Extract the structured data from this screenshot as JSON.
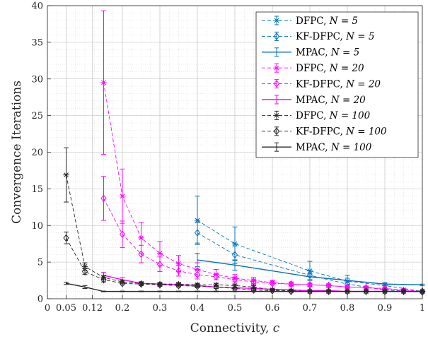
{
  "chart_data": {
    "type": "line",
    "title": "",
    "xlabel": "Connectivity, ",
    "xlabel_var": "c",
    "ylabel": "Convergence Iterations",
    "xlim": [
      0,
      1
    ],
    "ylim": [
      0,
      40
    ],
    "x_ticks": [
      0,
      0.05,
      0.12,
      0.2,
      0.3,
      0.4,
      0.5,
      0.6,
      0.7,
      0.8,
      0.9,
      1
    ],
    "x_tick_labels": [
      "0",
      "0.05",
      "0.12",
      "0.2",
      "0.3",
      "0.4",
      "0.5",
      "0.6",
      "0.7",
      "0.8",
      "0.9",
      "1"
    ],
    "y_ticks": [
      0,
      5,
      10,
      15,
      20,
      25,
      30,
      35,
      40
    ],
    "y_tick_labels": [
      "0",
      "5",
      "10",
      "15",
      "20",
      "25",
      "30",
      "35",
      "40"
    ],
    "grid": true,
    "legend_position": "top-right",
    "colors": {
      "n5": "#0072BD",
      "n20": "#FF00FF",
      "n100": "#262626"
    },
    "series": [
      {
        "name": "DFPC, ",
        "n_label": "N = 5",
        "group": "n5",
        "style": "dashed",
        "marker": "star",
        "x": [
          0.4,
          0.5,
          0.7,
          0.8,
          0.9,
          1.0
        ],
        "y": [
          10.7,
          7.5,
          3.8,
          2.4,
          1.8,
          1.0
        ],
        "err": [
          3.3,
          2.3,
          1.3,
          0.8,
          0.3,
          0.1
        ]
      },
      {
        "name": "KF-DFPC, ",
        "n_label": "N = 5",
        "group": "n5",
        "style": "dashed",
        "marker": "diamond",
        "x": [
          0.4,
          0.5,
          0.7,
          0.8,
          0.9,
          1.0
        ],
        "y": [
          9.0,
          6.0,
          3.2,
          2.0,
          1.2,
          0.9
        ],
        "err": [
          1.4,
          1.2,
          0.6,
          0.4,
          0.2,
          0.1
        ]
      },
      {
        "name": "MPAC, ",
        "n_label": "N = 5",
        "group": "n5",
        "style": "solid",
        "marker": "none",
        "x": [
          0.4,
          0.5,
          0.7,
          0.8,
          0.9,
          1.0
        ],
        "y": [
          5.3,
          4.6,
          3.0,
          2.5,
          2.0,
          1.9
        ],
        "err": [
          0.9,
          0.7,
          0.4,
          0.3,
          0.2,
          0.1
        ]
      },
      {
        "name": "DFPC, ",
        "n_label": "N = 20",
        "group": "n20",
        "style": "dashed",
        "marker": "star",
        "x": [
          0.15,
          0.2,
          0.25,
          0.3,
          0.35,
          0.4,
          0.45,
          0.5,
          0.55,
          0.6,
          0.65,
          0.7,
          0.75,
          0.8,
          0.85,
          0.9,
          0.95,
          1.0
        ],
        "y": [
          29.5,
          14.0,
          8.3,
          6.2,
          4.8,
          4.0,
          3.3,
          2.8,
          2.5,
          2.2,
          2.0,
          1.9,
          1.8,
          1.6,
          1.5,
          1.4,
          1.2,
          1.0
        ],
        "err": [
          9.8,
          3.7,
          2.1,
          1.6,
          1.1,
          0.9,
          0.7,
          0.5,
          0.4,
          0.3,
          0.3,
          0.2,
          0.2,
          0.2,
          0.2,
          0.1,
          0.1,
          0.1
        ]
      },
      {
        "name": "KF-DFPC, ",
        "n_label": "N = 20",
        "group": "n20",
        "style": "dashed",
        "marker": "diamond",
        "x": [
          0.15,
          0.2,
          0.25,
          0.3,
          0.35,
          0.4,
          0.45,
          0.5,
          0.55,
          0.6,
          0.65,
          0.7,
          0.75,
          0.8,
          0.85,
          0.9,
          0.95,
          1.0
        ],
        "y": [
          13.7,
          8.8,
          6.1,
          4.7,
          3.8,
          3.3,
          3.0,
          2.6,
          2.3,
          2.1,
          2.0,
          1.9,
          1.8,
          1.6,
          1.5,
          1.3,
          1.1,
          1.0
        ],
        "err": [
          3.0,
          1.8,
          1.2,
          1.0,
          0.7,
          0.6,
          0.4,
          0.3,
          0.3,
          0.2,
          0.2,
          0.2,
          0.2,
          0.1,
          0.1,
          0.1,
          0.1,
          0.1
        ]
      },
      {
        "name": "MPAC, ",
        "n_label": "N = 20",
        "group": "n20",
        "style": "solid",
        "marker": "none",
        "x": [
          0.15,
          0.2,
          0.25,
          0.3,
          0.35,
          0.4,
          0.45,
          0.5,
          0.55,
          0.6,
          0.65,
          0.7,
          0.75,
          0.8,
          0.85,
          0.9,
          0.95,
          1.0
        ],
        "y": [
          3.2,
          2.6,
          2.1,
          2.0,
          1.9,
          1.8,
          1.6,
          1.5,
          1.4,
          1.3,
          1.2,
          1.1,
          1.1,
          1.0,
          1.0,
          1.0,
          1.0,
          1.0
        ],
        "err": [
          0.4,
          0.3,
          0.2,
          0.2,
          0.2,
          0.2,
          0.2,
          0.1,
          0.1,
          0.1,
          0.1,
          0.1,
          0.1,
          0.1,
          0.1,
          0.1,
          0.1,
          0.1
        ]
      },
      {
        "name": "DFPC, ",
        "n_label": "N = 100",
        "group": "n100",
        "style": "dashed",
        "marker": "star",
        "x": [
          0.05,
          0.1,
          0.15,
          0.2,
          0.25,
          0.3,
          0.35,
          0.4,
          0.45,
          0.5,
          0.55,
          0.6,
          0.65,
          0.7,
          0.75,
          0.8,
          0.85,
          0.9,
          0.95,
          1.0
        ],
        "y": [
          16.9,
          4.4,
          2.9,
          2.3,
          2.1,
          2.0,
          2.0,
          1.9,
          1.9,
          1.8,
          1.6,
          1.2,
          1.1,
          1.0,
          1.0,
          1.0,
          1.0,
          1.0,
          1.0,
          1.0
        ],
        "err": [
          3.7,
          0.5,
          0.3,
          0.2,
          0.2,
          0.2,
          0.2,
          0.2,
          0.2,
          0.2,
          0.2,
          0.1,
          0.1,
          0.1,
          0.1,
          0.1,
          0.1,
          0.1,
          0.1,
          0.1
        ]
      },
      {
        "name": "KF-DFPC, ",
        "n_label": "N = 100",
        "group": "n100",
        "style": "dashed",
        "marker": "diamond",
        "x": [
          0.05,
          0.1,
          0.15,
          0.2,
          0.25,
          0.3,
          0.35,
          0.4,
          0.45,
          0.5,
          0.55,
          0.6,
          0.65,
          0.7,
          0.75,
          0.8,
          0.85,
          0.9,
          0.95,
          1.0
        ],
        "y": [
          8.3,
          3.7,
          2.6,
          2.1,
          2.0,
          1.9,
          1.8,
          1.7,
          1.6,
          1.4,
          1.2,
          1.1,
          1.0,
          1.0,
          1.0,
          1.0,
          1.0,
          1.0,
          1.0,
          1.0
        ],
        "err": [
          0.8,
          0.4,
          0.3,
          0.2,
          0.2,
          0.2,
          0.2,
          0.2,
          0.2,
          0.1,
          0.1,
          0.1,
          0.1,
          0.1,
          0.1,
          0.1,
          0.1,
          0.1,
          0.1,
          0.1
        ]
      },
      {
        "name": "MPAC, ",
        "n_label": "N = 100",
        "group": "n100",
        "style": "solid",
        "marker": "none",
        "x": [
          0.05,
          0.1,
          0.15,
          0.2,
          0.25,
          0.3,
          0.35,
          0.4,
          0.45,
          0.5,
          0.55,
          0.6,
          0.65,
          0.7,
          0.75,
          0.8,
          0.85,
          0.9,
          0.95,
          1.0
        ],
        "y": [
          2.1,
          1.6,
          1.0,
          1.0,
          1.0,
          1.0,
          1.0,
          1.0,
          1.0,
          1.0,
          1.0,
          1.0,
          1.0,
          1.0,
          1.0,
          1.0,
          1.0,
          1.0,
          1.0,
          1.0
        ],
        "err": [
          0.15,
          0.2,
          0.05,
          0.05,
          0.05,
          0.05,
          0.05,
          0.05,
          0.05,
          0.05,
          0.05,
          0.05,
          0.05,
          0.05,
          0.05,
          0.05,
          0.05,
          0.05,
          0.05,
          0.05
        ]
      }
    ]
  }
}
